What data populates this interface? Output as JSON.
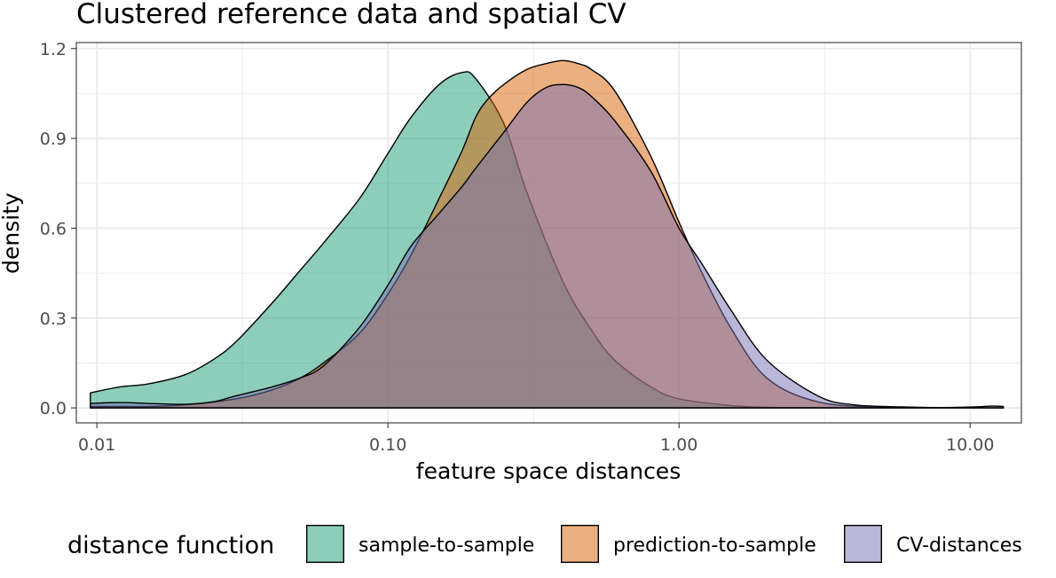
{
  "chart_data": {
    "type": "area",
    "title": "Clustered reference data and spatial CV",
    "xlabel": "feature space distances",
    "ylabel": "density",
    "x_scale": "log10",
    "xlim": [
      0.0085,
      15
    ],
    "ylim": [
      -0.05,
      1.22
    ],
    "x_ticks": [
      0.01,
      0.1,
      1,
      10
    ],
    "x_tick_labels": [
      "0.01",
      "0.10",
      "1.00",
      "10.00"
    ],
    "y_ticks": [
      0,
      0.3,
      0.6,
      0.9,
      1.2
    ],
    "y_tick_labels": [
      "0.0",
      "0.3",
      "0.6",
      "0.9",
      "1.2"
    ],
    "grid": true,
    "legend_position": "bottom",
    "legend_title": "distance function",
    "series": [
      {
        "name": "sample-to-sample",
        "color": "#1b9e77",
        "x": [
          0.0095,
          0.012,
          0.015,
          0.02,
          0.025,
          0.03,
          0.04,
          0.05,
          0.06,
          0.08,
          0.1,
          0.12,
          0.15,
          0.18,
          0.2,
          0.25,
          0.3,
          0.4,
          0.5,
          0.6,
          0.8,
          1.0,
          1.5,
          2.0,
          3.0,
          5.0,
          10.0,
          13.0
        ],
        "y": [
          0.05,
          0.07,
          0.08,
          0.11,
          0.16,
          0.22,
          0.35,
          0.46,
          0.55,
          0.7,
          0.85,
          0.97,
          1.08,
          1.12,
          1.1,
          0.95,
          0.72,
          0.42,
          0.26,
          0.16,
          0.07,
          0.03,
          0.008,
          0.002,
          0.001,
          0.0,
          0.0,
          0.0
        ]
      },
      {
        "name": "prediction-to-sample",
        "color": "#d95f02",
        "x": [
          0.0095,
          0.012,
          0.015,
          0.02,
          0.03,
          0.04,
          0.05,
          0.06,
          0.08,
          0.1,
          0.12,
          0.15,
          0.18,
          0.2,
          0.22,
          0.25,
          0.3,
          0.35,
          0.4,
          0.45,
          0.5,
          0.6,
          0.8,
          1.0,
          1.2,
          1.5,
          2.0,
          3.0,
          5.0,
          10.0,
          13.0
        ],
        "y": [
          0.005,
          0.005,
          0.005,
          0.01,
          0.03,
          0.06,
          0.1,
          0.15,
          0.25,
          0.38,
          0.51,
          0.7,
          0.86,
          0.97,
          1.03,
          1.08,
          1.13,
          1.15,
          1.16,
          1.15,
          1.13,
          1.06,
          0.84,
          0.62,
          0.45,
          0.27,
          0.1,
          0.02,
          0.003,
          0.0,
          0.0
        ]
      },
      {
        "name": "CV-distances",
        "color": "#7570b3",
        "x": [
          0.0095,
          0.012,
          0.015,
          0.02,
          0.025,
          0.03,
          0.04,
          0.05,
          0.06,
          0.08,
          0.1,
          0.12,
          0.15,
          0.18,
          0.2,
          0.25,
          0.3,
          0.35,
          0.4,
          0.45,
          0.5,
          0.6,
          0.8,
          1.0,
          1.2,
          1.5,
          2.0,
          3.0,
          4.0,
          6.0,
          8.0,
          10.0,
          12.0,
          13.0
        ],
        "y": [
          0.015,
          0.018,
          0.015,
          0.012,
          0.02,
          0.04,
          0.07,
          0.1,
          0.14,
          0.27,
          0.41,
          0.54,
          0.65,
          0.74,
          0.8,
          0.92,
          1.02,
          1.07,
          1.08,
          1.07,
          1.04,
          0.96,
          0.79,
          0.6,
          0.48,
          0.33,
          0.16,
          0.04,
          0.01,
          0.003,
          0.001,
          0.003,
          0.006,
          0.005
        ]
      }
    ]
  }
}
